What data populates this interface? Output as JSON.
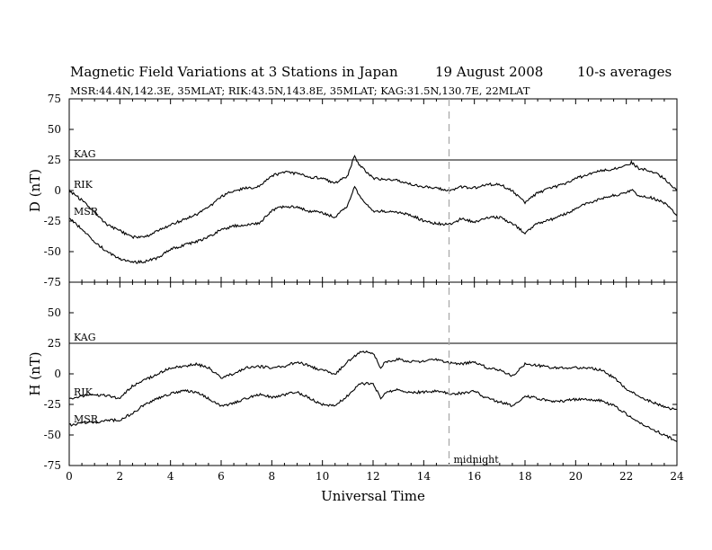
{
  "header": {
    "title": "Magnetic Field Variations at 3 Stations in Japan",
    "date": "19  August  2008",
    "averaging": "10-s averages",
    "stations": "MSR:44.4N,142.3E, 35MLAT;   RIK:43.5N,143.8E, 35MLAT;   KAG:31.5N,130.7E, 22MLAT"
  },
  "chart_data": {
    "type": "line",
    "xlabel": "Universal Time",
    "xlim": [
      0,
      24
    ],
    "xticks": [
      0,
      2,
      4,
      6,
      8,
      10,
      12,
      14,
      16,
      18,
      20,
      22,
      24
    ],
    "ylim": [
      -75,
      75
    ],
    "yticks": [
      -75,
      -50,
      -25,
      0,
      25,
      50,
      75
    ],
    "grid": false,
    "marker": {
      "x": 15,
      "label": "midnight",
      "style": "dashed",
      "color": "#aaaaaa"
    },
    "panels": [
      {
        "component": "D",
        "ylabel": "D (nT)",
        "series": [
          {
            "name": "KAG",
            "x": [
              0,
              24
            ],
            "values": [
              25,
              25
            ]
          },
          {
            "name": "RIK",
            "x": [
              0,
              0.5,
              1,
              1.5,
              2,
              2.5,
              3,
              3.5,
              4,
              4.5,
              5,
              5.5,
              6,
              6.5,
              7,
              7.5,
              8,
              8.5,
              9,
              9.5,
              10,
              10.5,
              11,
              11.25,
              11.5,
              12,
              12.5,
              13,
              13.5,
              14,
              14.5,
              15,
              15.5,
              16,
              16.5,
              17,
              17.5,
              18,
              18.5,
              19,
              19.5,
              20,
              20.5,
              21,
              21.5,
              22,
              22.2,
              22.5,
              23,
              23.5,
              24
            ],
            "values": [
              0,
              -8,
              -18,
              -28,
              -33,
              -38,
              -38,
              -33,
              -28,
              -24,
              -20,
              -14,
              -5,
              0,
              2,
              3,
              12,
              15,
              14,
              11,
              10,
              6,
              12,
              28,
              20,
              10,
              9,
              8,
              5,
              3,
              2,
              0,
              3,
              2,
              5,
              5,
              0,
              -10,
              -2,
              2,
              5,
              10,
              13,
              16,
              18,
              20,
              23,
              18,
              16,
              10,
              0
            ]
          },
          {
            "name": "MSR",
            "x": [
              0,
              0.5,
              1,
              1.5,
              2,
              2.5,
              3,
              3.5,
              4,
              4.5,
              5,
              5.5,
              6,
              6.5,
              7,
              7.5,
              8,
              8.5,
              9,
              9.5,
              10,
              10.5,
              11,
              11.25,
              11.5,
              12,
              12.5,
              13,
              13.5,
              14,
              14.5,
              15,
              15.5,
              16,
              16.5,
              17,
              17.5,
              18,
              18.5,
              19,
              19.5,
              20,
              20.5,
              21,
              21.5,
              22,
              22.2,
              22.5,
              23,
              23.5,
              24
            ],
            "values": [
              -22,
              -32,
              -42,
              -50,
              -56,
              -59,
              -58,
              -55,
              -48,
              -45,
              -42,
              -38,
              -32,
              -29,
              -28,
              -27,
              -16,
              -13,
              -14,
              -17,
              -18,
              -22,
              -12,
              3,
              -5,
              -17,
              -17,
              -18,
              -20,
              -25,
              -27,
              -28,
              -23,
              -26,
              -22,
              -22,
              -27,
              -35,
              -27,
              -24,
              -20,
              -15,
              -10,
              -7,
              -4,
              -2,
              1,
              -5,
              -6,
              -10,
              -20
            ]
          }
        ]
      },
      {
        "component": "H",
        "ylabel": "H (nT)",
        "series": [
          {
            "name": "KAG",
            "x": [
              0,
              24
            ],
            "values": [
              25,
              25
            ]
          },
          {
            "name": "RIK",
            "x": [
              0,
              0.5,
              1,
              1.5,
              2,
              2.5,
              3,
              3.5,
              4,
              4.5,
              5,
              5.5,
              6,
              6.5,
              7,
              7.5,
              8,
              8.5,
              9,
              9.5,
              10,
              10.5,
              11,
              11.5,
              12,
              12.3,
              12.5,
              13,
              13.5,
              14,
              14.5,
              15,
              15.5,
              16,
              16.5,
              17,
              17.5,
              18,
              18.5,
              19,
              19.5,
              20,
              20.5,
              21,
              21.5,
              22,
              22.5,
              23,
              23.5,
              24
            ],
            "values": [
              -20,
              -18,
              -17,
              -18,
              -20,
              -10,
              -5,
              0,
              5,
              6,
              8,
              5,
              -3,
              0,
              5,
              6,
              5,
              6,
              10,
              6,
              3,
              0,
              10,
              18,
              17,
              5,
              10,
              12,
              10,
              10,
              12,
              9,
              8,
              10,
              5,
              3,
              -2,
              8,
              7,
              5,
              5,
              5,
              5,
              3,
              -3,
              -12,
              -18,
              -23,
              -27,
              -30
            ]
          },
          {
            "name": "MSR",
            "x": [
              0,
              0.5,
              1,
              1.5,
              2,
              2.5,
              3,
              3.5,
              4,
              4.5,
              5,
              5.5,
              6,
              6.5,
              7,
              7.5,
              8,
              8.5,
              9,
              9.5,
              10,
              10.5,
              11,
              11.5,
              12,
              12.3,
              12.5,
              13,
              13.5,
              14,
              14.5,
              15,
              15.5,
              16,
              16.5,
              17,
              17.5,
              18,
              18.5,
              19,
              19.5,
              20,
              20.5,
              21,
              21.5,
              22,
              22.5,
              23,
              23.5,
              24
            ],
            "values": [
              -42,
              -40,
              -40,
              -38,
              -38,
              -32,
              -25,
              -20,
              -16,
              -14,
              -15,
              -20,
              -27,
              -24,
              -20,
              -17,
              -19,
              -17,
              -15,
              -20,
              -25,
              -26,
              -18,
              -8,
              -8,
              -20,
              -15,
              -13,
              -15,
              -15,
              -14,
              -16,
              -16,
              -14,
              -20,
              -23,
              -26,
              -18,
              -20,
              -22,
              -22,
              -21,
              -21,
              -22,
              -26,
              -33,
              -40,
              -45,
              -50,
              -55
            ]
          }
        ]
      }
    ]
  }
}
